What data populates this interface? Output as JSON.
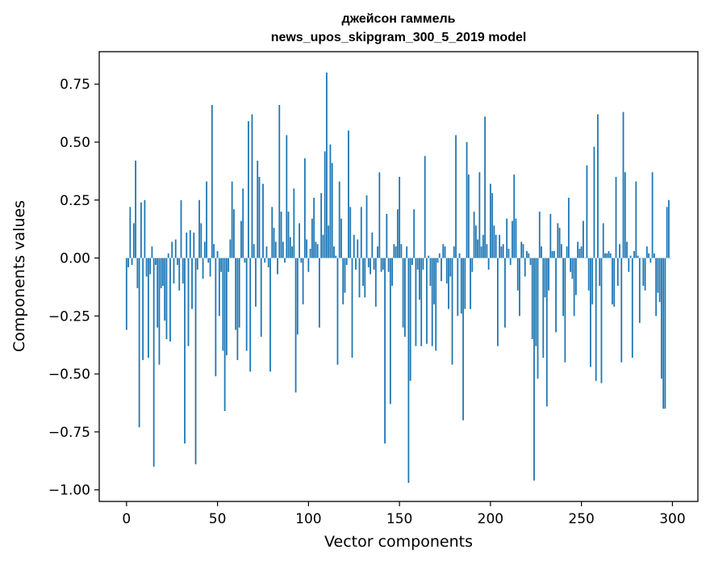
{
  "chart_data": {
    "type": "bar",
    "title": "джейсон гаммель",
    "subtitle": "news_upos_skipgram_300_5_2019 model",
    "xlabel": "Vector components",
    "ylabel": "Components values",
    "xlim": [
      -15,
      314
    ],
    "ylim": [
      -1.05,
      0.89
    ],
    "xticks": [
      0,
      50,
      100,
      150,
      200,
      250,
      300
    ],
    "xtick_labels": [
      "0",
      "50",
      "100",
      "150",
      "200",
      "250",
      "300"
    ],
    "yticks": [
      -1.0,
      -0.75,
      -0.5,
      -0.25,
      0.0,
      0.25,
      0.5,
      0.75
    ],
    "ytick_labels": [
      "−1.00",
      "−0.75",
      "−0.50",
      "−0.25",
      "0.00",
      "0.25",
      "0.50",
      "0.75"
    ],
    "grid": false,
    "bar_color": "#1f77b4",
    "x": [
      0,
      1,
      2,
      3,
      4,
      5,
      6,
      7,
      8,
      9,
      10,
      11,
      12,
      13,
      14,
      15,
      16,
      17,
      18,
      19,
      20,
      21,
      22,
      23,
      24,
      25,
      26,
      27,
      28,
      29,
      30,
      31,
      32,
      33,
      34,
      35,
      36,
      37,
      38,
      39,
      40,
      41,
      42,
      43,
      44,
      45,
      46,
      47,
      48,
      49,
      50,
      51,
      52,
      53,
      54,
      55,
      56,
      57,
      58,
      59,
      60,
      61,
      62,
      63,
      64,
      65,
      66,
      67,
      68,
      69,
      70,
      71,
      72,
      73,
      74,
      75,
      76,
      77,
      78,
      79,
      80,
      81,
      82,
      83,
      84,
      85,
      86,
      87,
      88,
      89,
      90,
      91,
      92,
      93,
      94,
      95,
      96,
      97,
      98,
      99,
      100,
      101,
      102,
      103,
      104,
      105,
      106,
      107,
      108,
      109,
      110,
      111,
      112,
      113,
      114,
      115,
      116,
      117,
      118,
      119,
      120,
      121,
      122,
      123,
      124,
      125,
      126,
      127,
      128,
      129,
      130,
      131,
      132,
      133,
      134,
      135,
      136,
      137,
      138,
      139,
      140,
      141,
      142,
      143,
      144,
      145,
      146,
      147,
      148,
      149,
      150,
      151,
      152,
      153,
      154,
      155,
      156,
      157,
      158,
      159,
      160,
      161,
      162,
      163,
      164,
      165,
      166,
      167,
      168,
      169,
      170,
      171,
      172,
      173,
      174,
      175,
      176,
      177,
      178,
      179,
      180,
      181,
      182,
      183,
      184,
      185,
      186,
      187,
      188,
      189,
      190,
      191,
      192,
      193,
      194,
      195,
      196,
      197,
      198,
      199,
      200,
      201,
      202,
      203,
      204,
      205,
      206,
      207,
      208,
      209,
      210,
      211,
      212,
      213,
      214,
      215,
      216,
      217,
      218,
      219,
      220,
      221,
      222,
      223,
      224,
      225,
      226,
      227,
      228,
      229,
      230,
      231,
      232,
      233,
      234,
      235,
      236,
      237,
      238,
      239,
      240,
      241,
      242,
      243,
      244,
      245,
      246,
      247,
      248,
      249,
      250,
      251,
      252,
      253,
      254,
      255,
      256,
      257,
      258,
      259,
      260,
      261,
      262,
      263,
      264,
      265,
      266,
      267,
      268,
      269,
      270,
      271,
      272,
      273,
      274,
      275,
      276,
      277,
      278,
      279,
      280,
      281,
      282,
      283,
      284,
      285,
      286,
      287,
      288,
      289,
      290,
      291,
      292,
      293,
      294,
      295,
      296,
      297,
      298,
      299
    ],
    "values": [
      -0.31,
      -0.04,
      0.22,
      -0.03,
      0.15,
      0.42,
      -0.13,
      -0.73,
      0.24,
      -0.44,
      0.25,
      -0.08,
      -0.43,
      -0.07,
      0.05,
      -0.9,
      -0.03,
      -0.3,
      -0.46,
      -0.13,
      -0.12,
      -0.27,
      -0.35,
      0.02,
      -0.36,
      0.07,
      -0.11,
      0.08,
      -0.03,
      -0.14,
      0.25,
      -0.11,
      -0.8,
      0.11,
      -0.38,
      0.12,
      -0.22,
      0.11,
      -0.89,
      -0.05,
      0.25,
      0.15,
      -0.09,
      0.07,
      0.33,
      -0.02,
      -0.08,
      0.66,
      0.06,
      -0.51,
      0.03,
      -0.25,
      -0.06,
      -0.4,
      -0.66,
      -0.42,
      -0.06,
      0.08,
      0.33,
      0.21,
      -0.31,
      -0.44,
      -0.3,
      0.16,
      0.3,
      -0.02,
      -0.4,
      0.59,
      -0.49,
      0.62,
      0.06,
      -0.21,
      0.42,
      0.35,
      -0.34,
      0.32,
      -0.02,
      0.05,
      -0.04,
      -0.49,
      0.22,
      0.13,
      0.07,
      -0.07,
      0.66,
      0.2,
      0.07,
      -0.02,
      0.53,
      0.2,
      0.09,
      0.05,
      0.3,
      -0.58,
      -0.33,
      0.15,
      -0.02,
      -0.2,
      0.43,
      0.08,
      -0.06,
      0.04,
      0.17,
      0.26,
      0.07,
      0.06,
      -0.3,
      0.28,
      0.1,
      0.46,
      0.8,
      0.14,
      0.49,
      0.41,
      0.05,
      0.01,
      -0.46,
      0.33,
      0.17,
      -0.2,
      -0.15,
      -0.03,
      0.55,
      0.22,
      -0.43,
      0.1,
      -0.05,
      0.08,
      -0.17,
      0.22,
      -0.12,
      -0.17,
      0.27,
      -0.04,
      -0.07,
      0.11,
      -0.05,
      -0.21,
      0.05,
      0.37,
      -0.06,
      -0.05,
      -0.8,
      0.19,
      -0.06,
      -0.63,
      -0.12,
      0.06,
      0.05,
      0.21,
      0.35,
      0.06,
      -0.3,
      -0.34,
      0.05,
      -0.97,
      -0.53,
      -0.03,
      0.21,
      -0.38,
      -0.05,
      -0.18,
      -0.38,
      -0.05,
      0.44,
      -0.37,
      0.01,
      -0.12,
      -0.38,
      -0.2,
      -0.4,
      -0.02,
      0.02,
      -0.1,
      0.06,
      0.05,
      -0.11,
      -0.22,
      -0.08,
      -0.46,
      0.05,
      0.53,
      -0.25,
      0.02,
      -0.24,
      -0.7,
      -0.22,
      0.5,
      0.36,
      -0.22,
      -0.06,
      0.2,
      0.14,
      0.08,
      0.37,
      0.05,
      0.1,
      0.61,
      0.06,
      -0.05,
      0.32,
      0.28,
      0.14,
      0.1,
      -0.38,
      0.1,
      0.05,
      0.06,
      -0.3,
      0.17,
      0.04,
      -0.03,
      0.16,
      0.36,
      0.17,
      -0.14,
      -0.25,
      0.07,
      0.06,
      -0.08,
      0.03,
      0.02,
      -0.03,
      -0.35,
      -0.96,
      -0.38,
      -0.52,
      0.2,
      0.05,
      -0.43,
      -0.17,
      -0.64,
      -0.14,
      0.19,
      0.03,
      0.03,
      -0.32,
      0.15,
      0.13,
      0.06,
      -0.25,
      -0.45,
      0.05,
      0.26,
      -0.06,
      -0.09,
      -0.25,
      -0.16,
      0.07,
      0.04,
      0.05,
      0.16,
      0.0,
      0.4,
      -0.14,
      -0.47,
      -0.2,
      0.48,
      -0.53,
      0.62,
      -0.12,
      -0.54,
      0.15,
      0.02,
      0.02,
      0.03,
      0.02,
      -0.2,
      -0.21,
      0.35,
      -0.12,
      0.06,
      -0.45,
      0.63,
      0.37,
      0.07,
      -0.06,
      0.01,
      -0.43,
      0.03,
      0.33,
      0.01,
      -0.28,
      0.0,
      -0.12,
      -0.14,
      0.05,
      0.02,
      -0.02,
      0.37,
      0.02,
      -0.25,
      -0.15,
      -0.19,
      -0.52,
      -0.65,
      -0.65,
      0.22,
      0.25,
      0.0
    ]
  }
}
